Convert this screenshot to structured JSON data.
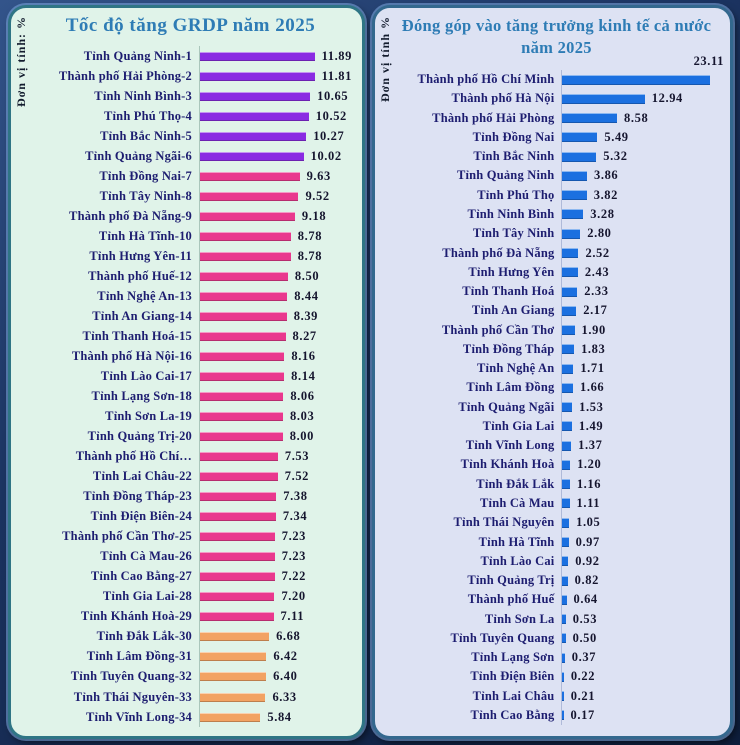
{
  "palette": {
    "purple": "#8A2BE2",
    "pink": "#E9398E",
    "orange": "#F2A263",
    "blue": "#1B70E0",
    "title": "#2E7CB5",
    "label": "#1D1D70",
    "panel_left_bg": "#E0F3E9",
    "panel_right_bg": "#DDE2F3",
    "frame_bg": "#1B3360"
  },
  "chart_data": [
    {
      "type": "bar",
      "orientation": "horizontal",
      "title": "Tốc độ tăng GRDP năm 2025",
      "unit_label": "Đơn vị tính: %",
      "xlim": [
        0,
        14.7
      ],
      "grid": false,
      "legend": false,
      "rows": [
        {
          "label": "Tỉnh Quảng Ninh-1",
          "value": "11.89",
          "color": "purple"
        },
        {
          "label": "Thành phố Hải Phòng-2",
          "value": "11.81",
          "color": "purple"
        },
        {
          "label": "Tỉnh Ninh Bình-3",
          "value": "10.65",
          "color": "purple"
        },
        {
          "label": "Tỉnh Phú Thọ-4",
          "value": "10.52",
          "color": "purple"
        },
        {
          "label": "Tỉnh Bắc Ninh-5",
          "value": "10.27",
          "color": "purple"
        },
        {
          "label": "Tỉnh Quảng Ngãi-6",
          "value": "10.02",
          "color": "purple"
        },
        {
          "label": "Tỉnh Đồng Nai-7",
          "value": "9.63",
          "color": "pink"
        },
        {
          "label": "Tỉnh Tây Ninh-8",
          "value": "9.52",
          "color": "pink"
        },
        {
          "label": "Thành phố Đà Nẵng-9",
          "value": "9.18",
          "color": "pink"
        },
        {
          "label": "Tỉnh Hà Tĩnh-10",
          "value": "8.78",
          "color": "pink"
        },
        {
          "label": "Tỉnh Hưng Yên-11",
          "value": "8.78",
          "color": "pink"
        },
        {
          "label": "Thành phố Huế-12",
          "value": "8.50",
          "color": "pink"
        },
        {
          "label": "Tỉnh Nghệ An-13",
          "value": "8.44",
          "color": "pink"
        },
        {
          "label": "Tỉnh An Giang-14",
          "value": "8.39",
          "color": "pink"
        },
        {
          "label": "Tỉnh Thanh Hoá-15",
          "value": "8.27",
          "color": "pink"
        },
        {
          "label": "Thành phố Hà Nội-16",
          "value": "8.16",
          "color": "pink"
        },
        {
          "label": "Tỉnh Lào Cai-17",
          "value": "8.14",
          "color": "pink"
        },
        {
          "label": "Tỉnh Lạng Sơn-18",
          "value": "8.06",
          "color": "pink"
        },
        {
          "label": "Tỉnh Sơn La-19",
          "value": "8.03",
          "color": "pink"
        },
        {
          "label": "Tỉnh Quảng Trị-20",
          "value": "8.00",
          "color": "pink"
        },
        {
          "label": "Thành phố Hồ Chí…",
          "value": "7.53",
          "color": "pink"
        },
        {
          "label": "Tỉnh Lai Châu-22",
          "value": "7.52",
          "color": "pink"
        },
        {
          "label": "Tỉnh Đồng Tháp-23",
          "value": "7.38",
          "color": "pink"
        },
        {
          "label": "Tỉnh Điện Biên-24",
          "value": "7.34",
          "color": "pink"
        },
        {
          "label": "Thành phố Cần Thơ-25",
          "value": "7.23",
          "color": "pink"
        },
        {
          "label": "Tỉnh Cà Mau-26",
          "value": "7.23",
          "color": "pink"
        },
        {
          "label": "Tỉnh Cao Bằng-27",
          "value": "7.22",
          "color": "pink"
        },
        {
          "label": "Tỉnh Gia Lai-28",
          "value": "7.20",
          "color": "pink"
        },
        {
          "label": "Tỉnh Khánh Hoà-29",
          "value": "7.11",
          "color": "pink"
        },
        {
          "label": "Tỉnh Đắk Lắk-30",
          "value": "6.68",
          "color": "orange"
        },
        {
          "label": "Tỉnh Lâm Đồng-31",
          "value": "6.42",
          "color": "orange"
        },
        {
          "label": "Tỉnh Tuyên Quang-32",
          "value": "6.40",
          "color": "orange"
        },
        {
          "label": "Tỉnh Thái Nguyên-33",
          "value": "6.33",
          "color": "orange"
        },
        {
          "label": "Tỉnh Vĩnh Long-34",
          "value": "5.84",
          "color": "orange"
        }
      ]
    },
    {
      "type": "bar",
      "orientation": "horizontal",
      "title": "Đóng góp vào tăng trưởng kinh tế cả nước năm 2025",
      "unit_label": "Đơn vị tính %",
      "xlim": [
        0,
        25.7
      ],
      "grid": false,
      "legend": false,
      "rows": [
        {
          "label": "Thành phố Hồ Chí Minh",
          "value": "23.11",
          "color": "blue",
          "value_above": true
        },
        {
          "label": "Thành phố Hà Nội",
          "value": "12.94",
          "color": "blue"
        },
        {
          "label": "Thành phố Hải Phòng",
          "value": "8.58",
          "color": "blue"
        },
        {
          "label": "Tỉnh Đồng Nai",
          "value": "5.49",
          "color": "blue"
        },
        {
          "label": "Tỉnh Bắc Ninh",
          "value": "5.32",
          "color": "blue"
        },
        {
          "label": "Tỉnh Quảng Ninh",
          "value": "3.86",
          "color": "blue"
        },
        {
          "label": "Tỉnh Phú Thọ",
          "value": "3.82",
          "color": "blue"
        },
        {
          "label": "Tỉnh Ninh Bình",
          "value": "3.28",
          "color": "blue"
        },
        {
          "label": "Tỉnh Tây Ninh",
          "value": "2.80",
          "color": "blue"
        },
        {
          "label": "Thành phố Đà Nẵng",
          "value": "2.52",
          "color": "blue"
        },
        {
          "label": "Tỉnh Hưng Yên",
          "value": "2.43",
          "color": "blue"
        },
        {
          "label": "Tỉnh Thanh Hoá",
          "value": "2.33",
          "color": "blue"
        },
        {
          "label": "Tỉnh An Giang",
          "value": "2.17",
          "color": "blue"
        },
        {
          "label": "Thành phố Cần Thơ",
          "value": "1.90",
          "color": "blue"
        },
        {
          "label": "Tỉnh Đồng Tháp",
          "value": "1.83",
          "color": "blue"
        },
        {
          "label": "Tỉnh Nghệ An",
          "value": "1.71",
          "color": "blue"
        },
        {
          "label": "Tỉnh Lâm Đồng",
          "value": "1.66",
          "color": "blue"
        },
        {
          "label": "Tỉnh Quảng Ngãi",
          "value": "1.53",
          "color": "blue"
        },
        {
          "label": "Tỉnh Gia Lai",
          "value": "1.49",
          "color": "blue"
        },
        {
          "label": "Tỉnh Vĩnh Long",
          "value": "1.37",
          "color": "blue"
        },
        {
          "label": "Tỉnh Khánh Hoà",
          "value": "1.20",
          "color": "blue"
        },
        {
          "label": "Tỉnh Đắk Lắk",
          "value": "1.16",
          "color": "blue"
        },
        {
          "label": "Tỉnh Cà Mau",
          "value": "1.11",
          "color": "blue"
        },
        {
          "label": "Tỉnh Thái Nguyên",
          "value": "1.05",
          "color": "blue"
        },
        {
          "label": "Tỉnh Hà Tĩnh",
          "value": "0.97",
          "color": "blue"
        },
        {
          "label": "Tỉnh Lào Cai",
          "value": "0.92",
          "color": "blue"
        },
        {
          "label": "Tỉnh Quảng Trị",
          "value": "0.82",
          "color": "blue"
        },
        {
          "label": "Thành phố Huế",
          "value": "0.64",
          "color": "blue"
        },
        {
          "label": "Tỉnh Sơn La",
          "value": "0.53",
          "color": "blue"
        },
        {
          "label": "Tỉnh Tuyên Quang",
          "value": "0.50",
          "color": "blue"
        },
        {
          "label": "Tỉnh Lạng Sơn",
          "value": "0.37",
          "color": "blue"
        },
        {
          "label": "Tỉnh Điện Biên",
          "value": "0.22",
          "color": "blue"
        },
        {
          "label": "Tỉnh Lai Châu",
          "value": "0.21",
          "color": "blue"
        },
        {
          "label": "Tỉnh Cao Bằng",
          "value": "0.17",
          "color": "blue"
        }
      ]
    }
  ]
}
